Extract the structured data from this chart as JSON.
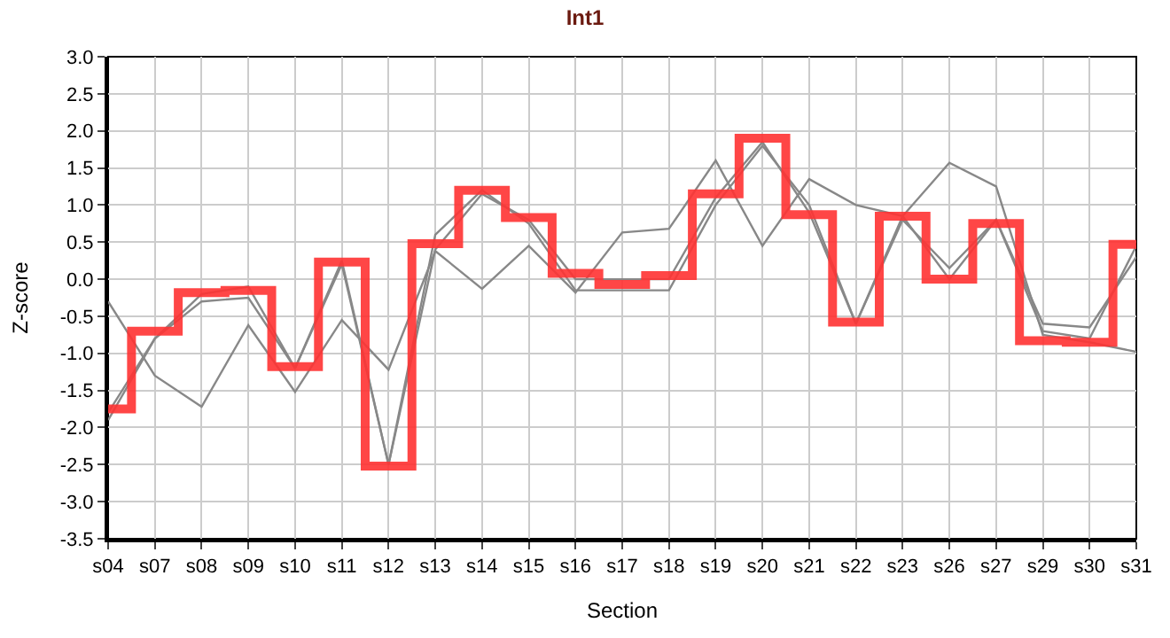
{
  "chart_data": {
    "type": "line",
    "title": "Int1",
    "xlabel": "Section",
    "ylabel": "Z-score",
    "categories": [
      "s04",
      "s07",
      "s08",
      "s09",
      "s10",
      "s11",
      "s12",
      "s13",
      "s14",
      "s15",
      "s16",
      "s17",
      "s18",
      "s19",
      "s20",
      "s21",
      "s22",
      "s23",
      "s26",
      "s27",
      "s29",
      "s30",
      "s31"
    ],
    "series": [
      {
        "color": "#888888",
        "values": [
          -1.8,
          -0.8,
          -0.2,
          -0.1,
          -1.2,
          0.25,
          -2.5,
          0.4,
          1.15,
          0.8,
          0.0,
          null,
          0.0,
          1.1,
          1.85,
          0.9,
          -0.6,
          0.85,
          0.0,
          0.8,
          -0.7,
          -0.8,
          0.45
        ]
      },
      {
        "color": "#888888",
        "values": [
          -1.9,
          -0.8,
          -0.3,
          -0.25,
          -1.2,
          0.2,
          -2.5,
          0.6,
          1.2,
          0.75,
          -0.15,
          null,
          -0.15,
          1.0,
          1.8,
          1.0,
          -0.6,
          0.8,
          0.15,
          0.8,
          -0.6,
          -0.65,
          0.3
        ]
      },
      {
        "color": "#888888",
        "values": [
          -0.3,
          -1.3,
          -1.72,
          -0.62,
          -1.52,
          -0.55,
          -1.22,
          0.38,
          -0.13,
          0.45,
          -0.18,
          0.63,
          0.68,
          1.6,
          0.45,
          1.35,
          1.0,
          0.85,
          1.57,
          1.25,
          -0.75,
          -0.85,
          -0.98
        ]
      },
      {
        "type": "step",
        "color": "#ff3333",
        "values": [
          -1.75,
          -0.7,
          -0.18,
          -0.15,
          -1.18,
          0.23,
          -2.52,
          0.48,
          1.2,
          0.83,
          0.08,
          -0.07,
          0.05,
          1.15,
          1.9,
          0.87,
          -0.58,
          0.85,
          0.0,
          0.75,
          -0.83,
          -0.85,
          0.47
        ]
      }
    ],
    "ylim": [
      -3.5,
      3.0
    ],
    "yticks": [
      {
        "value": -3.5,
        "label": "-3.5"
      },
      {
        "value": -3,
        "label": "-3.0"
      },
      {
        "value": -2.5,
        "label": "-2.5"
      },
      {
        "value": -2,
        "label": "-2.0"
      },
      {
        "value": -1.5,
        "label": "-1.5"
      },
      {
        "value": -1,
        "label": "-1.0"
      },
      {
        "value": -0.5,
        "label": "-0.5"
      },
      {
        "value": 0,
        "label": "0.0"
      },
      {
        "value": 0.5,
        "label": "0.5"
      },
      {
        "value": 1,
        "label": "1.0"
      },
      {
        "value": 1.5,
        "label": "1.5"
      },
      {
        "value": 2,
        "label": "2.0"
      },
      {
        "value": 2.5,
        "label": "2.5"
      },
      {
        "value": 3,
        "label": "3.0"
      }
    ],
    "grid": true
  }
}
